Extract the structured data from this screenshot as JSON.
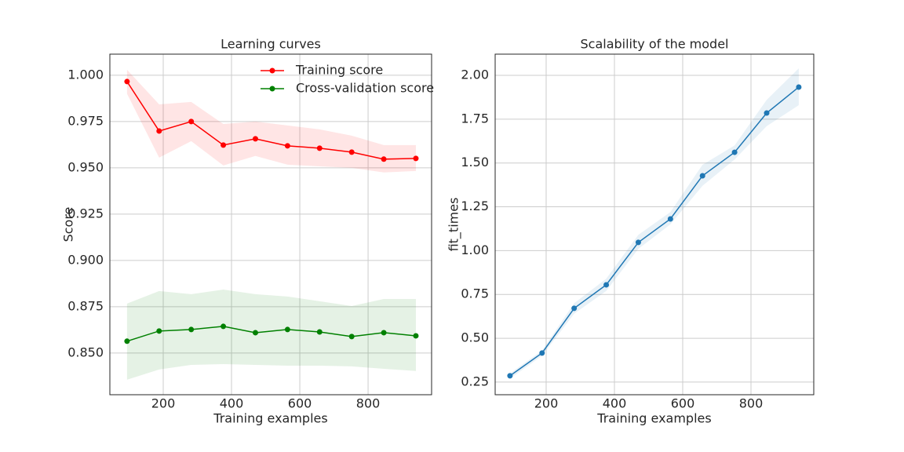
{
  "chart_data": [
    {
      "type": "line",
      "title": "Learning curves",
      "xlabel": "Training examples",
      "ylabel": "Score",
      "x": [
        94,
        188,
        282,
        376,
        470,
        564,
        658,
        752,
        846,
        940
      ],
      "series": [
        {
          "name": "Training score",
          "color": "#ff0000",
          "values": [
            0.9966,
            0.9699,
            0.975,
            0.9623,
            0.9657,
            0.9619,
            0.9606,
            0.9585,
            0.9547,
            0.9551
          ],
          "lower": [
            0.99,
            0.9555,
            0.9644,
            0.9513,
            0.9564,
            0.9517,
            0.9508,
            0.95,
            0.9475,
            0.9483
          ],
          "upper": [
            1.003,
            0.9843,
            0.9856,
            0.9737,
            0.975,
            0.9729,
            0.9708,
            0.9674,
            0.9623,
            0.9623
          ]
        },
        {
          "name": "Cross-validation score",
          "color": "#008000",
          "values": [
            0.8564,
            0.8619,
            0.8627,
            0.8644,
            0.861,
            0.8627,
            0.8614,
            0.8589,
            0.861,
            0.8593
          ],
          "lower": [
            0.8356,
            0.8411,
            0.8436,
            0.844,
            0.8436,
            0.8432,
            0.8432,
            0.8428,
            0.8415,
            0.8403
          ],
          "upper": [
            0.8767,
            0.8835,
            0.8818,
            0.8843,
            0.8818,
            0.8805,
            0.878,
            0.8754,
            0.8792,
            0.8792
          ]
        }
      ],
      "xlim": [
        43.7,
        986
      ],
      "xticks": [
        200,
        400,
        600,
        800
      ],
      "ylim": [
        0.8275,
        1.0114
      ],
      "yticks": [
        {
          "value": 0.85,
          "label": "0.850"
        },
        {
          "value": 0.875,
          "label": "0.875"
        },
        {
          "value": 0.9,
          "label": "0.900"
        },
        {
          "value": 0.925,
          "label": "0.925"
        },
        {
          "value": 0.95,
          "label": "0.950"
        },
        {
          "value": 0.975,
          "label": "0.975"
        },
        {
          "value": 1.0,
          "label": "1.000"
        }
      ],
      "grid": true,
      "legend": "upper-right"
    },
    {
      "type": "line",
      "title": "Scalability of the model",
      "xlabel": "Training examples",
      "ylabel": "fit_times",
      "x": [
        94,
        188,
        282,
        376,
        470,
        564,
        658,
        752,
        846,
        940
      ],
      "series": [
        {
          "color": "#1f77b4",
          "values": [
            0.286,
            0.416,
            0.671,
            0.805,
            1.047,
            1.181,
            1.427,
            1.561,
            1.785,
            1.933
          ],
          "lower": [
            0.27,
            0.4,
            0.64,
            0.77,
            1.01,
            1.15,
            1.37,
            1.52,
            1.71,
            1.83
          ],
          "upper": [
            0.3,
            0.43,
            0.7,
            0.84,
            1.09,
            1.22,
            1.49,
            1.6,
            1.86,
            2.04
          ]
        }
      ],
      "xlim": [
        50.6,
        983.9
      ],
      "xticks": [
        200,
        400,
        600,
        800
      ],
      "ylim": [
        0.178,
        2.121
      ],
      "yticks": [
        {
          "value": 0.25,
          "label": "0.25"
        },
        {
          "value": 0.5,
          "label": "0.50"
        },
        {
          "value": 0.75,
          "label": "0.75"
        },
        {
          "value": 1.0,
          "label": "1.00"
        },
        {
          "value": 1.25,
          "label": "1.25"
        },
        {
          "value": 1.5,
          "label": "1.50"
        },
        {
          "value": 1.75,
          "label": "1.75"
        },
        {
          "value": 2.0,
          "label": "2.00"
        }
      ],
      "grid": true
    }
  ]
}
